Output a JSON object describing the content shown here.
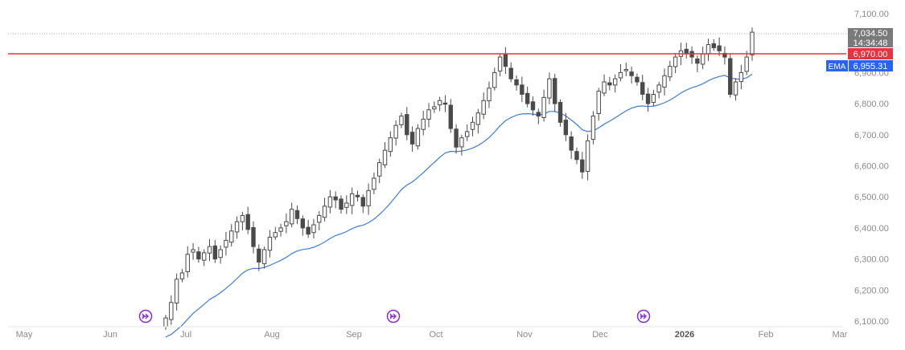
{
  "chart_data": {
    "type": "candlestick",
    "x_months": [
      "May",
      "Jun",
      "Jul",
      "Aug",
      "Sep",
      "Oct",
      "Nov",
      "Dec",
      "2026",
      "Feb",
      "Mar"
    ],
    "y_ticks": [
      "7,100.00",
      "6,900.00",
      "6,800.00",
      "6,700.00",
      "6,600.00",
      "6,500.00",
      "6,400.00",
      "6,300.00",
      "6,200.00",
      "6,100.00"
    ],
    "ylim": [
      6100,
      7100
    ],
    "series_closes": [
      6110,
      6160,
      6235,
      6255,
      6315,
      6330,
      6300,
      6320,
      6340,
      6300,
      6330,
      6360,
      6390,
      6420,
      6440,
      6395,
      6340,
      6290,
      6330,
      6370,
      6385,
      6400,
      6420,
      6460,
      6430,
      6400,
      6380,
      6410,
      6440,
      6470,
      6500,
      6490,
      6460,
      6480,
      6510,
      6500,
      6470,
      6520,
      6560,
      6610,
      6650,
      6690,
      6730,
      6760,
      6700,
      6670,
      6720,
      6750,
      6780,
      6790,
      6810,
      6800,
      6720,
      6660,
      6690,
      6710,
      6740,
      6770,
      6810,
      6850,
      6900,
      6950,
      6920,
      6880,
      6860,
      6830,
      6800,
      6780,
      6760,
      6820,
      6880,
      6800,
      6740,
      6700,
      6650,
      6620,
      6580,
      6680,
      6760,
      6840,
      6870,
      6860,
      6880,
      6900,
      6910,
      6890,
      6870,
      6830,
      6800,
      6830,
      6860,
      6890,
      6920,
      6950,
      6970,
      6960,
      6950,
      6930,
      6960,
      6990,
      6980,
      6970,
      6950,
      6830,
      6870,
      6900,
      6950,
      7030
    ],
    "ema_points": [
      [
        6100
      ],
      [
        6950
      ]
    ],
    "price_tag": "7,034.50",
    "time_tag": "14:34:48",
    "level_tag": "6,970.00",
    "level_value": 6970,
    "ema_label": "EMA",
    "ema_value": "6,955.31",
    "colors": {
      "candle": "#4a4a4a",
      "ema": "#3b7ddd",
      "level": "#e8323d",
      "price_tag_bg": "#7a7a7a",
      "ema_tag_bg": "#2962ff",
      "event_icon": "#8a2be2"
    }
  }
}
